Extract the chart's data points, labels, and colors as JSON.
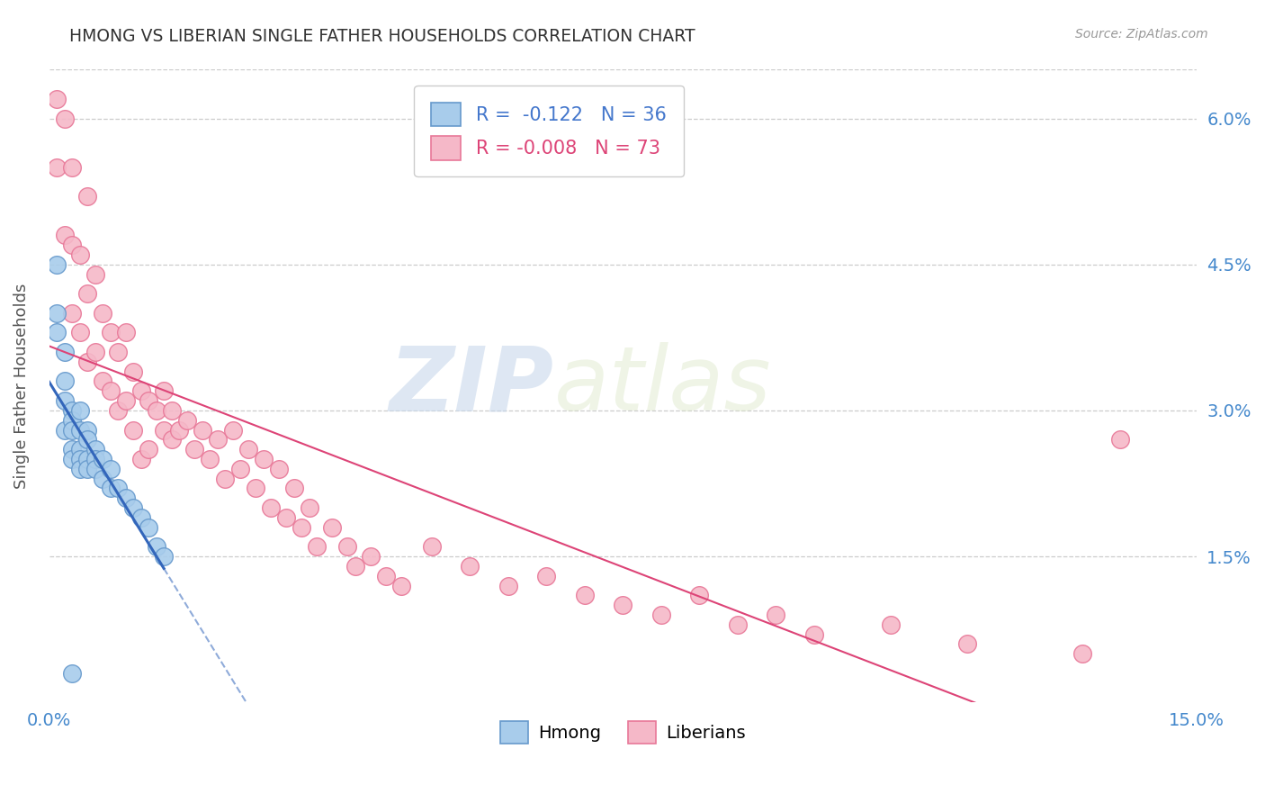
{
  "title": "HMONG VS LIBERIAN SINGLE FATHER HOUSEHOLDS CORRELATION CHART",
  "source": "Source: ZipAtlas.com",
  "ylabel": "Single Father Households",
  "watermark_zip": "ZIP",
  "watermark_atlas": "atlas",
  "legend_hmong_r": "-0.122",
  "legend_hmong_n": "36",
  "legend_liberian_r": "-0.008",
  "legend_liberian_n": "73",
  "xlim": [
    0.0,
    0.15
  ],
  "ylim": [
    0.0,
    0.065
  ],
  "ytick_values": [
    0.015,
    0.03,
    0.045,
    0.06
  ],
  "ytick_labels": [
    "1.5%",
    "3.0%",
    "4.5%",
    "6.0%"
  ],
  "xtick_values": [
    0.0,
    0.15
  ],
  "xtick_labels": [
    "0.0%",
    "15.0%"
  ],
  "hmong_color": "#a8cceb",
  "liberian_color": "#f5b8c8",
  "hmong_edge_color": "#6699cc",
  "liberian_edge_color": "#e87898",
  "regression_hmong_color": "#3366bb",
  "regression_liberian_color": "#dd4477",
  "background_color": "#ffffff",
  "grid_color": "#cccccc",
  "title_color": "#333333",
  "tick_color": "#4488cc",
  "hmong_x": [
    0.001,
    0.001,
    0.001,
    0.002,
    0.002,
    0.002,
    0.002,
    0.003,
    0.003,
    0.003,
    0.003,
    0.003,
    0.004,
    0.004,
    0.004,
    0.004,
    0.004,
    0.005,
    0.005,
    0.005,
    0.005,
    0.006,
    0.006,
    0.006,
    0.007,
    0.007,
    0.008,
    0.008,
    0.009,
    0.01,
    0.011,
    0.012,
    0.013,
    0.014,
    0.015,
    0.003
  ],
  "hmong_y": [
    0.045,
    0.04,
    0.038,
    0.036,
    0.033,
    0.031,
    0.028,
    0.03,
    0.029,
    0.028,
    0.026,
    0.025,
    0.03,
    0.028,
    0.026,
    0.025,
    0.024,
    0.028,
    0.027,
    0.025,
    0.024,
    0.026,
    0.025,
    0.024,
    0.025,
    0.023,
    0.024,
    0.022,
    0.022,
    0.021,
    0.02,
    0.019,
    0.018,
    0.016,
    0.015,
    0.003
  ],
  "liberian_x": [
    0.001,
    0.001,
    0.002,
    0.002,
    0.003,
    0.003,
    0.003,
    0.004,
    0.004,
    0.005,
    0.005,
    0.005,
    0.006,
    0.006,
    0.007,
    0.007,
    0.008,
    0.008,
    0.009,
    0.009,
    0.01,
    0.01,
    0.011,
    0.011,
    0.012,
    0.012,
    0.013,
    0.013,
    0.014,
    0.015,
    0.015,
    0.016,
    0.016,
    0.017,
    0.018,
    0.019,
    0.02,
    0.021,
    0.022,
    0.023,
    0.024,
    0.025,
    0.026,
    0.027,
    0.028,
    0.029,
    0.03,
    0.031,
    0.032,
    0.033,
    0.034,
    0.035,
    0.037,
    0.039,
    0.04,
    0.042,
    0.044,
    0.046,
    0.05,
    0.055,
    0.06,
    0.065,
    0.07,
    0.075,
    0.08,
    0.085,
    0.09,
    0.095,
    0.1,
    0.11,
    0.12,
    0.135,
    0.14
  ],
  "liberian_y": [
    0.062,
    0.055,
    0.06,
    0.048,
    0.055,
    0.047,
    0.04,
    0.046,
    0.038,
    0.052,
    0.042,
    0.035,
    0.044,
    0.036,
    0.04,
    0.033,
    0.038,
    0.032,
    0.036,
    0.03,
    0.038,
    0.031,
    0.034,
    0.028,
    0.032,
    0.025,
    0.031,
    0.026,
    0.03,
    0.032,
    0.028,
    0.03,
    0.027,
    0.028,
    0.029,
    0.026,
    0.028,
    0.025,
    0.027,
    0.023,
    0.028,
    0.024,
    0.026,
    0.022,
    0.025,
    0.02,
    0.024,
    0.019,
    0.022,
    0.018,
    0.02,
    0.016,
    0.018,
    0.016,
    0.014,
    0.015,
    0.013,
    0.012,
    0.016,
    0.014,
    0.012,
    0.013,
    0.011,
    0.01,
    0.009,
    0.011,
    0.008,
    0.009,
    0.007,
    0.008,
    0.006,
    0.005,
    0.027
  ]
}
